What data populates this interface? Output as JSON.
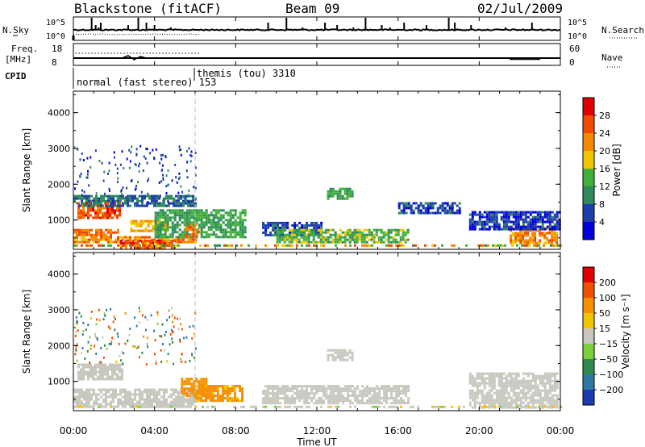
{
  "header": {
    "station": "Blackstone (fitACF)",
    "beam": "Beam 09",
    "date": "02/Jul/2009"
  },
  "noise_panel": {
    "left_label": "N.Sky",
    "right_label": "N.Search",
    "left_ticks": [
      "10^5",
      "10^0"
    ],
    "right_ticks": [
      "10^5",
      "10^0"
    ]
  },
  "freq_panel": {
    "left_label_line1": "Freq.",
    "left_label_line2": "[MHz]",
    "left_ticks": [
      "18",
      "8"
    ],
    "right_label": "Nave",
    "right_ticks": [
      "60",
      "0"
    ]
  },
  "cpid": {
    "label": "CPID",
    "modes": [
      {
        "name": "normal (fast stereo) 153",
        "start_hour": 0
      },
      {
        "name": "themis (tou) 3310",
        "start_hour": 6
      }
    ]
  },
  "power_panel": {
    "ylabel": "Slant Range [km]",
    "yticks": [
      "4000",
      "3000",
      "2000",
      "1000"
    ],
    "colorbar_label": "Power [dB]",
    "colorbar_ticks": [
      "28",
      "24",
      "20",
      "16",
      "12",
      "8",
      "4"
    ],
    "colors": [
      "#0000dd",
      "#1e3fa8",
      "#2f8a5c",
      "#3fb03a",
      "#f2c400",
      "#f58a00",
      "#f24a00",
      "#e00000"
    ]
  },
  "velocity_panel": {
    "ylabel": "Slant Range [km]",
    "yticks": [
      "4000",
      "3000",
      "2000",
      "1000"
    ],
    "colorbar_label": "Velocity [m s⁻¹]",
    "colorbar_ticks": [
      "200",
      "100",
      "50",
      "15",
      "−15",
      "−50",
      "−100",
      "−200"
    ],
    "colors": [
      "#1a3cb0",
      "#2e78a8",
      "#2f8c4c",
      "#7bd03c",
      "#c8c8c0",
      "#f2c400",
      "#f59000",
      "#f05000",
      "#e00000"
    ]
  },
  "xaxis": {
    "label": "Time UT",
    "ticks": [
      "00:00",
      "04:00",
      "08:00",
      "12:00",
      "16:00",
      "20:00",
      "00:00"
    ]
  },
  "chart_data": {
    "type": "heatmap",
    "title": "Blackstone (fitACF)",
    "xlabel": "Time UT",
    "ylabel": "Slant Range [km]",
    "xlim_hours": [
      0,
      24
    ],
    "ylim_km": [
      180,
      4600
    ],
    "power_clim_db": [
      0,
      32
    ],
    "velocity_clim": [
      -250,
      250
    ],
    "noise_spikes_hours": [
      0.9,
      1.1,
      1.25,
      1.35,
      2.7,
      3.2,
      3.6,
      4.0,
      4.8,
      9.6,
      10.5,
      11.3,
      12.4,
      13.0,
      13.8,
      14.4,
      15.2,
      15.6,
      16.3,
      17.4,
      18.5,
      18.8,
      19.6,
      21.3,
      22.6
    ],
    "power_regions": [
      {
        "t": [
          0.2,
          2.3
        ],
        "r": [
          1050,
          1500
        ],
        "db": 26
      },
      {
        "t": [
          0.0,
          6.0
        ],
        "r": [
          1400,
          1700
        ],
        "db": 8
      },
      {
        "t": [
          0.0,
          2.2
        ],
        "r": [
          550,
          750
        ],
        "db": 24
      },
      {
        "t": [
          0.0,
          6.0
        ],
        "r": [
          350,
          550
        ],
        "db": 22
      },
      {
        "t": [
          2.3,
          5.0
        ],
        "r": [
          200,
          450
        ],
        "db": 26
      },
      {
        "t": [
          2.8,
          4.6
        ],
        "r": [
          700,
          1000
        ],
        "db": 20
      },
      {
        "t": [
          4.0,
          8.5
        ],
        "r": [
          550,
          1300
        ],
        "db": 12
      },
      {
        "t": [
          5.5,
          6.2
        ],
        "r": [
          550,
          900
        ],
        "db": 24
      },
      {
        "t": [
          9.3,
          12.2
        ],
        "r": [
          550,
          950
        ],
        "db": 6
      },
      {
        "t": [
          10.0,
          16.5
        ],
        "r": [
          400,
          750
        ],
        "db": 14
      },
      {
        "t": [
          12.5,
          13.8
        ],
        "r": [
          1600,
          1900
        ],
        "db": 12
      },
      {
        "t": [
          16.0,
          19.0
        ],
        "r": [
          1200,
          1500
        ],
        "db": 6
      },
      {
        "t": [
          21.5,
          23.8
        ],
        "r": [
          350,
          800
        ],
        "db": 22
      },
      {
        "t": [
          19.5,
          24.0
        ],
        "r": [
          750,
          1250
        ],
        "db": 5
      }
    ],
    "velocity_regions": [
      {
        "t": [
          0.2,
          2.4
        ],
        "r": [
          1050,
          1500
        ],
        "v": 0
      },
      {
        "t": [
          0.0,
          6.0
        ],
        "r": [
          300,
          800
        ],
        "v": 0
      },
      {
        "t": [
          5.3,
          6.5
        ],
        "r": [
          600,
          1100
        ],
        "v": -60
      },
      {
        "t": [
          6.0,
          8.3
        ],
        "r": [
          450,
          900
        ],
        "v": -40
      },
      {
        "t": [
          9.3,
          16.5
        ],
        "r": [
          400,
          900
        ],
        "v": 0
      },
      {
        "t": [
          19.5,
          23.9
        ],
        "r": [
          300,
          1250
        ],
        "v": 0
      },
      {
        "t": [
          12.5,
          13.8
        ],
        "r": [
          1600,
          1900
        ],
        "v": 0
      }
    ]
  }
}
